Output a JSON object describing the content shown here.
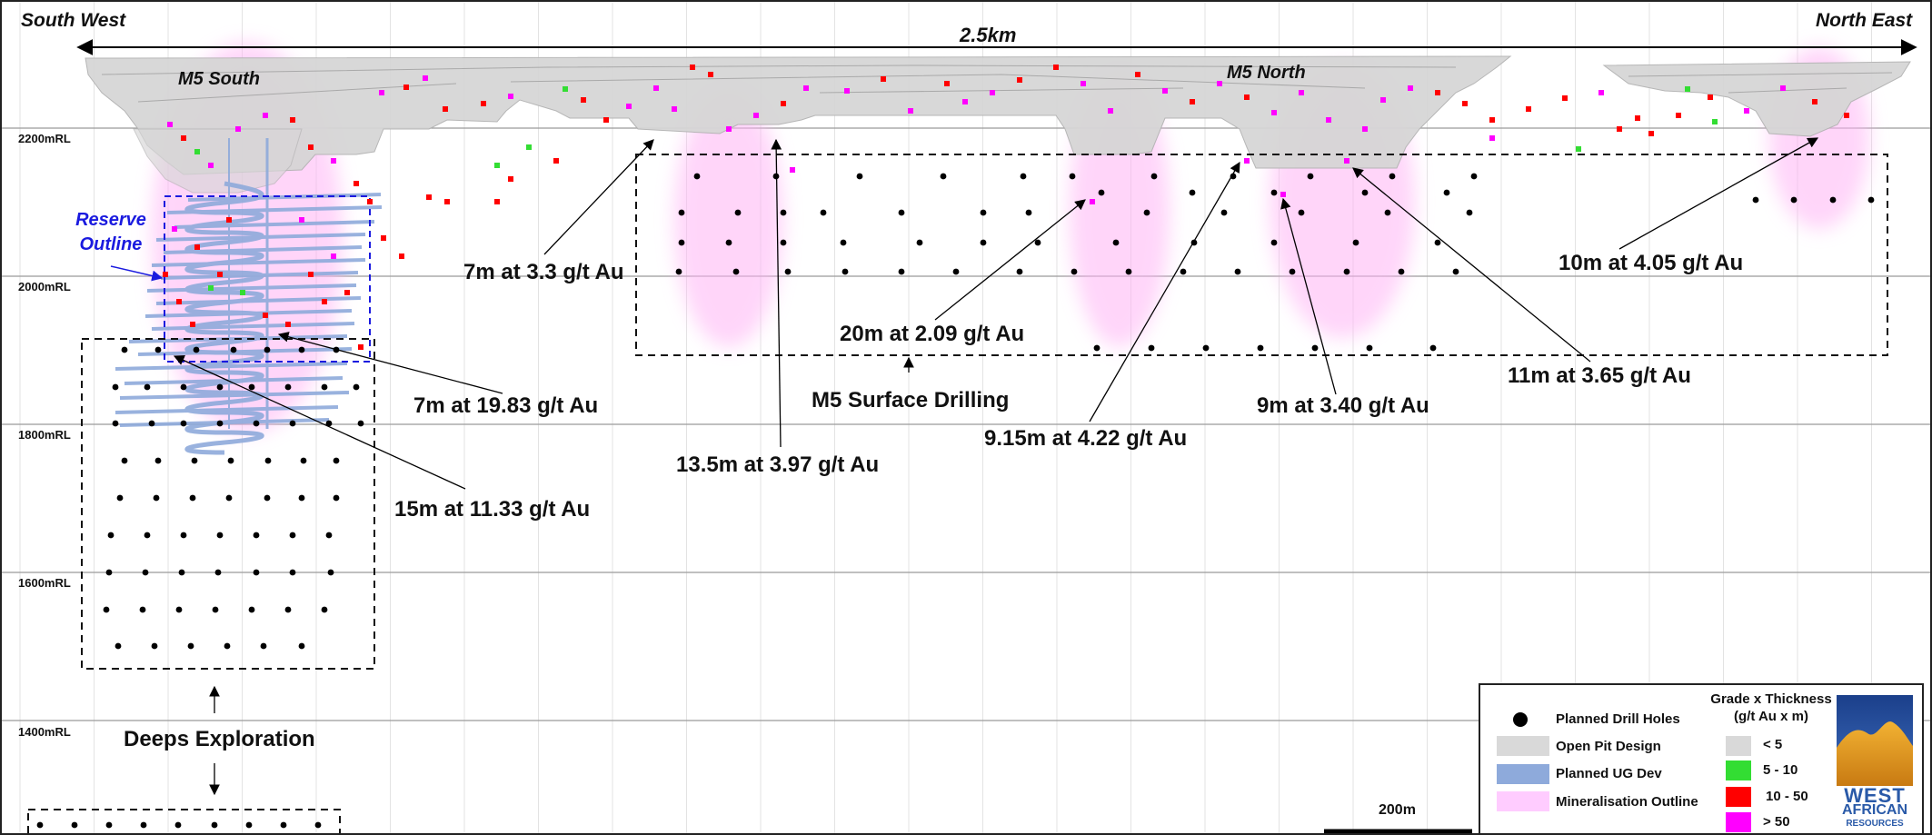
{
  "orientation": {
    "left": "South West",
    "right": "North East"
  },
  "width_label": "2.5km",
  "deposits": {
    "south": "M5 South",
    "north": "M5 North"
  },
  "rl_levels": [
    "2200mRL",
    "2000mRL",
    "1800mRL",
    "1600mRL",
    "1400mRL"
  ],
  "reserve_outline": {
    "line1": "Reserve",
    "line2": "Outline"
  },
  "zones": {
    "surface": "M5 Surface Drilling",
    "deeps": "Deeps Exploration"
  },
  "intercepts": [
    {
      "text": "7m at 3.3 g/t Au"
    },
    {
      "text": "7m at 19.83 g/t Au"
    },
    {
      "text": "15m at 11.33 g/t Au"
    },
    {
      "text": "13.5m at 3.97 g/t Au"
    },
    {
      "text": "20m at 2.09 g/t Au"
    },
    {
      "text": "9.15m at 4.22 g/t Au"
    },
    {
      "text": "9m at 3.40 g/t Au"
    },
    {
      "text": "11m at 3.65 g/t Au"
    },
    {
      "text": "10m at 4.05 g/t Au"
    }
  ],
  "scale_bar": "200m",
  "legend": {
    "items": [
      {
        "label": "Planned Drill Holes",
        "color": "#000000"
      },
      {
        "label": "Open Pit Design",
        "color": "#d9d9d9"
      },
      {
        "label": "Planned UG Dev",
        "color": "#8eaadb"
      },
      {
        "label": "Mineralisation Outline",
        "color": "#ffccff"
      }
    ],
    "grade_title": "Grade x Thickness",
    "grade_units": "(g/t Au x m)",
    "grade_classes": [
      {
        "label": "< 5",
        "color": "#d9d9d9"
      },
      {
        "label": "5 - 10",
        "color": "#33dd33"
      },
      {
        "label": "10 - 50",
        "color": "#ff0000"
      },
      {
        "label": "> 50",
        "color": "#ff00ff"
      }
    ]
  },
  "logo": {
    "line1": "WEST",
    "line2": "AFRICAN",
    "line3": "RESOURCES"
  }
}
